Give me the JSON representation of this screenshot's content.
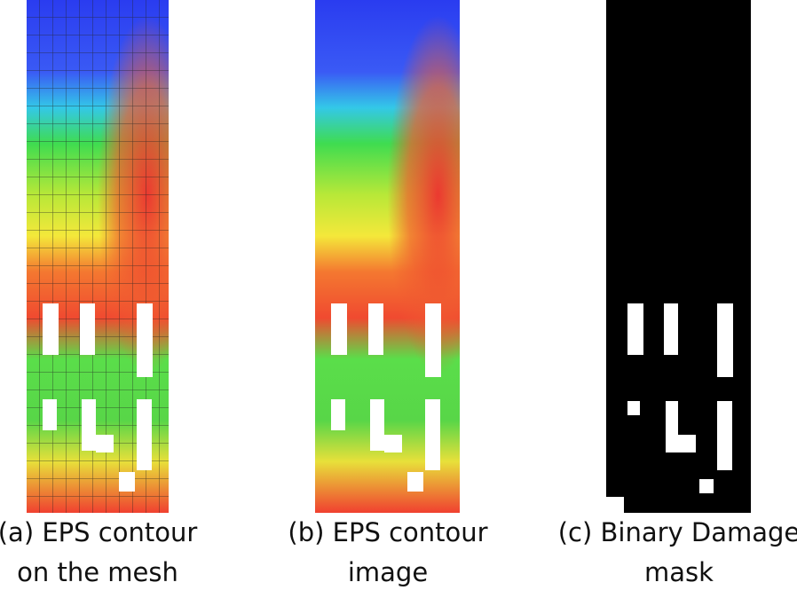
{
  "panels": [
    {
      "caption": [
        "(a) EPS contour",
        "on the mesh"
      ]
    },
    {
      "caption": [
        "(b) EPS contour",
        "image"
      ]
    },
    {
      "caption": [
        "(c) Binary Damage",
        "mask"
      ]
    }
  ]
}
